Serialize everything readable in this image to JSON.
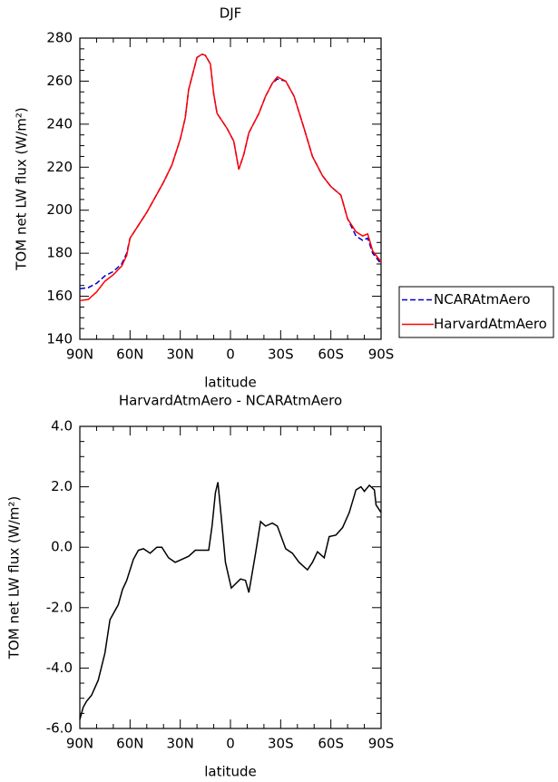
{
  "chart_data": [
    {
      "type": "line",
      "title": "DJF",
      "xlabel": "latitude",
      "ylabel": "TOM net LW flux (W/m²)",
      "x": [
        90,
        85,
        80,
        75,
        70,
        65,
        62,
        60,
        55,
        50,
        45,
        40,
        35,
        30,
        27,
        25,
        22,
        20,
        17,
        15,
        12,
        10,
        8,
        2,
        -2,
        -5,
        -8,
        -11,
        -17,
        -21,
        -25,
        -28,
        -33,
        -38,
        -44,
        -49,
        -55,
        -60,
        -66,
        -70,
        -75,
        -79,
        -82,
        -85,
        -90
      ],
      "series": [
        {
          "name": "NCARAtmAero",
          "color": "#0000cc",
          "line_style": "dashed",
          "values": [
            163.5,
            164,
            166,
            169.5,
            171.5,
            175,
            180,
            187,
            193,
            199,
            206,
            213,
            221,
            233,
            243,
            256,
            265,
            271,
            272.5,
            272,
            268,
            254,
            245,
            238,
            232,
            219,
            226,
            236,
            245,
            253,
            259,
            261,
            260,
            253,
            238,
            225,
            216,
            211,
            207,
            196,
            188,
            186,
            187,
            180,
            175
          ]
        },
        {
          "name": "HarvardAtmAero",
          "color": "#ff0000",
          "line_style": "solid",
          "values": [
            158,
            158.5,
            162,
            167,
            170,
            174,
            179,
            187,
            193,
            199,
            206,
            213,
            221,
            233,
            243,
            256,
            265,
            271,
            272.5,
            272,
            268,
            254,
            245,
            238,
            232,
            219,
            226,
            236,
            245,
            253,
            259,
            262,
            260,
            253,
            238,
            225,
            216,
            211,
            207,
            196,
            190,
            188,
            189,
            181,
            176
          ]
        }
      ],
      "xlim": [
        90,
        -90
      ],
      "xticks": [
        {
          "value": 90,
          "label": "90N"
        },
        {
          "value": 60,
          "label": "60N"
        },
        {
          "value": 30,
          "label": "30N"
        },
        0,
        {
          "value": -30,
          "label": "30S"
        },
        {
          "value": -60,
          "label": "60S"
        },
        {
          "value": -90,
          "label": "90S"
        }
      ],
      "ylim": [
        140,
        280
      ],
      "yticks": [
        140,
        160,
        180,
        200,
        220,
        240,
        260,
        280
      ],
      "legend": "right"
    },
    {
      "type": "line",
      "title": "HarvardAtmAero - NCARAtmAero",
      "xlabel": "latitude",
      "ylabel": "TOM net LW flux (W/m²)",
      "x": [
        90,
        88,
        86,
        83,
        79,
        75,
        72,
        67,
        64.5,
        62,
        58,
        55,
        52,
        48,
        44,
        41,
        37,
        33,
        29,
        25,
        21,
        13,
        11,
        9,
        7.5,
        5.5,
        3,
        -0.5,
        -6,
        -9,
        -11,
        -15,
        -18,
        -21,
        -25,
        -28,
        -33,
        -37,
        -41,
        -46,
        -49,
        -52,
        -56,
        -59,
        -63,
        -67,
        -71,
        -75,
        -78,
        -80,
        -83,
        -86,
        -87,
        -90
      ],
      "series": [
        {
          "color": "#000000",
          "line_style": "solid",
          "values": [
            -5.7,
            -5.3,
            -5.1,
            -4.9,
            -4.4,
            -3.5,
            -2.4,
            -1.9,
            -1.4,
            -1.1,
            -0.4,
            -0.1,
            -0.05,
            -0.2,
            0.0,
            0.0,
            -0.35,
            -0.5,
            -0.4,
            -0.3,
            -0.1,
            -0.1,
            0.7,
            1.8,
            2.15,
            1.0,
            -0.5,
            -1.35,
            -1.05,
            -1.1,
            -1.5,
            -0.2,
            0.85,
            0.7,
            0.8,
            0.7,
            -0.05,
            -0.2,
            -0.5,
            -0.75,
            -0.5,
            -0.15,
            -0.35,
            0.35,
            0.4,
            0.65,
            1.15,
            1.9,
            2.0,
            1.85,
            2.05,
            1.9,
            1.4,
            1.15
          ]
        }
      ],
      "xlim": [
        90,
        -90
      ],
      "xticks": [
        {
          "value": 90,
          "label": "90N"
        },
        {
          "value": 60,
          "label": "60N"
        },
        {
          "value": 30,
          "label": "30N"
        },
        0,
        {
          "value": -30,
          "label": "30S"
        },
        {
          "value": -60,
          "label": "60S"
        },
        {
          "value": -90,
          "label": "90S"
        }
      ],
      "ylim": [
        -6,
        4
      ],
      "yticks": [
        {
          "value": -6,
          "label": "-6.0"
        },
        {
          "value": -4,
          "label": "-4.0"
        },
        {
          "value": -2,
          "label": "-2.0"
        },
        {
          "value": 0,
          "label": "0.0"
        },
        {
          "value": 2,
          "label": "2.0"
        },
        {
          "value": 4,
          "label": "4.0"
        }
      ]
    }
  ]
}
